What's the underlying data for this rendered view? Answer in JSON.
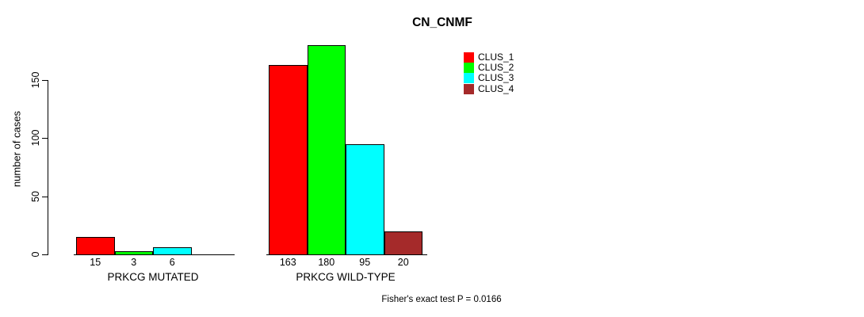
{
  "figure": {
    "title": "CN_CNMF",
    "footnote": "Fisher's exact test P = 0.0166"
  },
  "y_axis": {
    "label": "number of cases",
    "ticks": [
      0,
      50,
      100,
      150
    ]
  },
  "legend": {
    "items": [
      {
        "label": "CLUS_1",
        "color": "#ff0000"
      },
      {
        "label": "CLUS_2",
        "color": "#00ff00"
      },
      {
        "label": "CLUS_3",
        "color": "#00ffff"
      },
      {
        "label": "CLUS_4",
        "color": "#a52a2a"
      }
    ]
  },
  "chart_data": {
    "type": "bar",
    "title": "CN_CNMF",
    "xlabel": "",
    "ylabel": "number of cases",
    "ylim": [
      0,
      150
    ],
    "grid": false,
    "legend_position": "top-right",
    "categories": [
      "PRKCG MUTATED",
      "PRKCG WILD-TYPE"
    ],
    "series": [
      {
        "name": "CLUS_1",
        "color": "#ff0000",
        "values": [
          15,
          163
        ]
      },
      {
        "name": "CLUS_2",
        "color": "#00ff00",
        "values": [
          3,
          180
        ]
      },
      {
        "name": "CLUS_3",
        "color": "#00ffff",
        "values": [
          6,
          95
        ]
      },
      {
        "name": "CLUS_4",
        "color": "#a52a2a",
        "values": [
          0,
          20
        ]
      }
    ],
    "bar_value_labels": [
      [
        "15",
        "3",
        "6",
        ""
      ],
      [
        "163",
        "180",
        "95",
        "20"
      ]
    ],
    "annotation": "Fisher's exact test P = 0.0166"
  }
}
